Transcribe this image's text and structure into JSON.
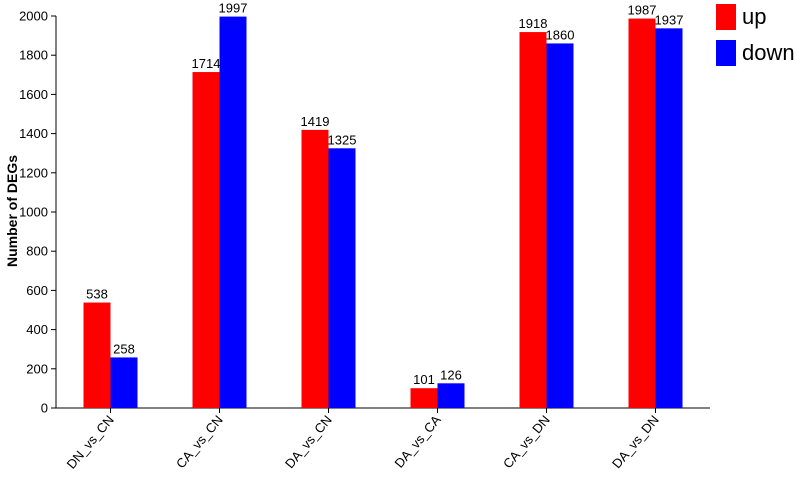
{
  "chart_data": {
    "type": "bar",
    "title": "",
    "xlabel": "",
    "ylabel": "Number of DEGs",
    "categories": [
      "DN_vs_CN",
      "CA_vs_CN",
      "DA_vs_CN",
      "DA_vs_CA",
      "CA_vs_DN",
      "DA_vs_DN"
    ],
    "series": [
      {
        "name": "up",
        "color": "#ff0000",
        "values": [
          538,
          1714,
          1419,
          101,
          1918,
          1987
        ]
      },
      {
        "name": "down",
        "color": "#0000ff",
        "values": [
          258,
          1997,
          1325,
          126,
          1860,
          1937
        ]
      }
    ],
    "ylim": [
      0,
      2000
    ],
    "yticks": [
      0,
      200,
      400,
      600,
      800,
      1000,
      1200,
      1400,
      1600,
      1800,
      2000
    ],
    "grid": false,
    "legend_position": "top-right outside"
  }
}
